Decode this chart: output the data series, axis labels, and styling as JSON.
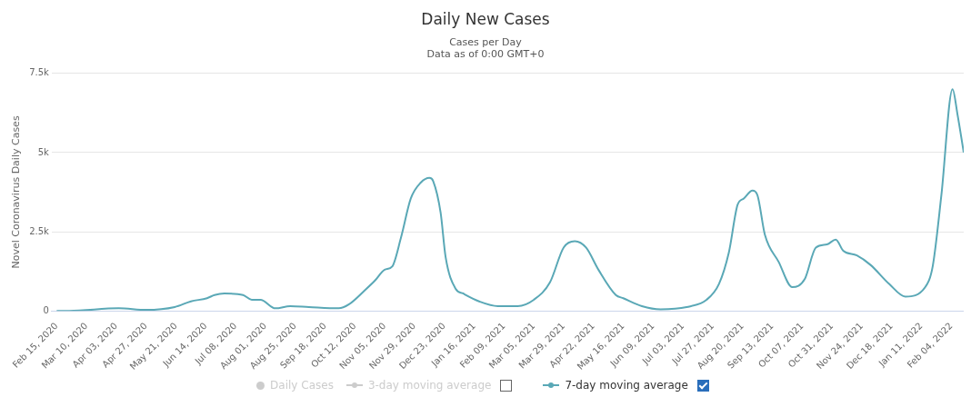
{
  "chart_data": {
    "type": "line",
    "title": "Daily New Cases",
    "subtitle": "Cases per Day",
    "annotations": [
      "Data as of 0:00 GMT+0"
    ],
    "ylabel": "Novel Coronavirus Daily Cases",
    "xlim": [
      "2020-02-11",
      "2022-02-14"
    ],
    "xticks": [
      {
        "value": "2020-02-15",
        "label": "Feb 15, 2020"
      },
      {
        "value": "2020-03-10",
        "label": "Mar 10, 2020"
      },
      {
        "value": "2020-04-03",
        "label": "Apr 03, 2020"
      },
      {
        "value": "2020-04-27",
        "label": "Apr 27, 2020"
      },
      {
        "value": "2020-05-21",
        "label": "May 21, 2020"
      },
      {
        "value": "2020-06-14",
        "label": "Jun 14, 2020"
      },
      {
        "value": "2020-07-08",
        "label": "Jul 08, 2020"
      },
      {
        "value": "2020-08-01",
        "label": "Aug 01, 2020"
      },
      {
        "value": "2020-08-25",
        "label": "Aug 25, 2020"
      },
      {
        "value": "2020-09-18",
        "label": "Sep 18, 2020"
      },
      {
        "value": "2020-10-12",
        "label": "Oct 12, 2020"
      },
      {
        "value": "2020-11-05",
        "label": "Nov 05, 2020"
      },
      {
        "value": "2020-11-29",
        "label": "Nov 29, 2020"
      },
      {
        "value": "2020-12-23",
        "label": "Dec 23, 2020"
      },
      {
        "value": "2021-01-16",
        "label": "Jan 16, 2021"
      },
      {
        "value": "2021-02-09",
        "label": "Feb 09, 2021"
      },
      {
        "value": "2021-03-05",
        "label": "Mar 05, 2021"
      },
      {
        "value": "2021-03-29",
        "label": "Mar 29, 2021"
      },
      {
        "value": "2021-04-22",
        "label": "Apr 22, 2021"
      },
      {
        "value": "2021-05-16",
        "label": "May 16, 2021"
      },
      {
        "value": "2021-06-09",
        "label": "Jun 09, 2021"
      },
      {
        "value": "2021-07-03",
        "label": "Jul 03, 2021"
      },
      {
        "value": "2021-07-27",
        "label": "Jul 27, 2021"
      },
      {
        "value": "2021-08-20",
        "label": "Aug 20, 2021"
      },
      {
        "value": "2021-09-13",
        "label": "Sep 13, 2021"
      },
      {
        "value": "2021-10-07",
        "label": "Oct 07, 2021"
      },
      {
        "value": "2021-10-31",
        "label": "Oct 31, 2021"
      },
      {
        "value": "2021-11-24",
        "label": "Nov 24, 2021"
      },
      {
        "value": "2021-12-18",
        "label": "Dec 18, 2021"
      },
      {
        "value": "2022-01-11",
        "label": "Jan 11, 2022"
      },
      {
        "value": "2022-02-04",
        "label": "Feb 04, 2022"
      }
    ],
    "ylim": [
      0,
      7500
    ],
    "yticks": [
      0,
      {
        "value": 2500,
        "label": "2.5k"
      },
      {
        "value": 5000,
        "label": "5k"
      },
      {
        "value": 7500,
        "label": "7.5k"
      }
    ],
    "grid": "y",
    "legend": "bottom",
    "series": [
      {
        "name": "Daily Cases",
        "type": "scatter",
        "color": "#cccccc"
      },
      {
        "name": "3-day moving average",
        "type": "line",
        "color": "#cccccc"
      },
      {
        "name": "7-day moving average",
        "color": "#5aa8b6",
        "x": [
          "2020-02-15",
          "2020-02-25",
          "2020-04-05",
          "2020-04-27",
          "2020-05-20",
          "2020-06-02",
          "2020-06-15",
          "2020-06-21",
          "2020-06-29",
          "2020-07-14",
          "2020-07-21",
          "2020-07-28",
          "2020-08-09",
          "2020-08-21",
          "2020-09-05",
          "2020-09-29",
          "2020-10-07",
          "2020-10-20",
          "2020-10-28",
          "2020-11-05",
          "2020-11-11",
          "2020-11-18",
          "2020-11-26",
          "2020-12-04",
          "2020-12-11",
          "2020-12-14",
          "2020-12-20",
          "2020-12-24",
          "2021-01-01",
          "2021-01-07",
          "2021-01-20",
          "2021-02-04",
          "2021-02-20",
          "2021-03-05",
          "2021-03-18",
          "2021-03-29",
          "2021-04-07",
          "2021-04-16",
          "2021-04-26",
          "2021-05-10",
          "2021-05-16",
          "2021-05-31",
          "2021-06-15",
          "2021-07-06",
          "2021-07-22",
          "2021-08-01",
          "2021-08-09",
          "2021-08-16",
          "2021-08-21",
          "2021-08-28",
          "2021-09-01",
          "2021-09-07",
          "2021-09-18",
          "2021-09-29",
          "2021-10-09",
          "2021-10-18",
          "2021-10-27",
          "2021-11-03",
          "2021-11-09",
          "2021-11-20",
          "2021-12-01",
          "2021-12-16",
          "2021-12-29",
          "2022-01-14",
          "2022-01-20",
          "2022-01-27",
          "2022-02-05",
          "2022-02-09",
          "2022-02-14"
        ],
        "values": [
          0,
          0,
          80,
          30,
          120,
          300,
          400,
          500,
          550,
          500,
          350,
          350,
          80,
          150,
          120,
          80,
          200,
          650,
          950,
          1300,
          1400,
          2300,
          3550,
          4050,
          4200,
          4100,
          3100,
          1700,
          700,
          550,
          300,
          150,
          150,
          350,
          900,
          2000,
          2200,
          2000,
          1300,
          500,
          400,
          150,
          50,
          120,
          350,
          850,
          1850,
          3350,
          3550,
          3800,
          3650,
          2400,
          1550,
          750,
          1000,
          2000,
          2100,
          2250,
          1900,
          1750,
          1450,
          850,
          450,
          750,
          1400,
          3650,
          7000,
          6200,
          5000
        ]
      }
    ]
  }
}
